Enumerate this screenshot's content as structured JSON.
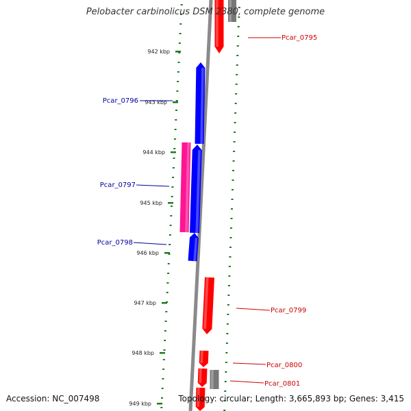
{
  "title": "Pelobacter carbinolicus DSM 2380, complete genome",
  "footer": {
    "accession": "Accession: NC_007498",
    "topology": "Topology: circular; Length: 3,665,893 bp; Genes: 3,415"
  },
  "colors": {
    "background": "#ffffff",
    "backbone": "#8a8a8a",
    "tick": "#1e7a1e",
    "forward_gene": "#ff0000",
    "reverse_gene": "#0000ff",
    "rna_gene": "#ff1493",
    "other_gene": "#777777",
    "forward_label": "#cc0000",
    "reverse_label": "#000099"
  },
  "scale_labels": [
    "942 kbp",
    "943 kbp",
    "944 kbp",
    "945 kbp",
    "946 kbp",
    "947 kbp",
    "948 kbp",
    "949 kbp"
  ],
  "genes": [
    {
      "name": "Pcar_0795",
      "strand": "forward",
      "type": "gene",
      "label": "Pcar_0795"
    },
    {
      "name": "",
      "strand": "forward",
      "type": "other",
      "label": ""
    },
    {
      "name": "Pcar_0796",
      "strand": "reverse",
      "type": "gene",
      "label": "Pcar_0796"
    },
    {
      "name": "Pcar_0797",
      "strand": "reverse",
      "type": "rna",
      "label": "Pcar_0797"
    },
    {
      "name": "",
      "strand": "reverse",
      "type": "gene",
      "label": ""
    },
    {
      "name": "Pcar_0798",
      "strand": "reverse",
      "type": "gene",
      "label": "Pcar_0798"
    },
    {
      "name": "Pcar_0799",
      "strand": "forward",
      "type": "gene",
      "label": "Pcar_0799"
    },
    {
      "name": "Pcar_0800",
      "strand": "forward",
      "type": "gene",
      "label": "Pcar_0800"
    },
    {
      "name": "Pcar_0801",
      "strand": "forward",
      "type": "gene",
      "label": "Pcar_0801"
    },
    {
      "name": "",
      "strand": "forward",
      "type": "other",
      "label": ""
    },
    {
      "name": "",
      "strand": "forward",
      "type": "gene",
      "label": ""
    }
  ]
}
